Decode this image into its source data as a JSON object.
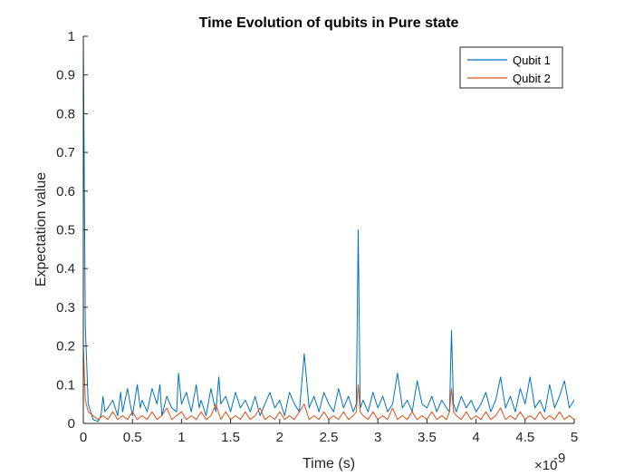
{
  "chart_data": {
    "type": "line",
    "title": "Time Evolution of qubits in Pure state",
    "xlabel": "Time (s)",
    "ylabel": "Expectation value",
    "x_exponent": {
      "base": "×10",
      "power": "-9"
    },
    "xlim": [
      0,
      5
    ],
    "ylim": [
      0,
      1
    ],
    "xticks": [
      0,
      0.5,
      1,
      1.5,
      2,
      2.5,
      3,
      3.5,
      4,
      4.5,
      5
    ],
    "xtick_labels": [
      "0",
      "0.5",
      "1",
      "1.5",
      "2",
      "2.5",
      "3",
      "3.5",
      "4",
      "4.5",
      "5"
    ],
    "yticks": [
      0,
      0.1,
      0.2,
      0.3,
      0.4,
      0.5,
      0.6,
      0.7,
      0.8,
      0.9,
      1
    ],
    "ytick_labels": [
      "0",
      "0.1",
      "0.2",
      "0.3",
      "0.4",
      "0.5",
      "0.6",
      "0.7",
      "0.8",
      "0.9",
      "1"
    ],
    "grid": false,
    "legend_position": "top-right",
    "series": [
      {
        "name": "Qubit 1",
        "color": "#0072BD",
        "x": [
          0,
          0.02,
          0.05,
          0.1,
          0.15,
          0.18,
          0.2,
          0.22,
          0.25,
          0.3,
          0.35,
          0.38,
          0.4,
          0.45,
          0.5,
          0.55,
          0.58,
          0.6,
          0.65,
          0.7,
          0.75,
          0.78,
          0.8,
          0.85,
          0.9,
          0.95,
          0.97,
          1.0,
          1.05,
          1.1,
          1.15,
          1.18,
          1.2,
          1.25,
          1.3,
          1.35,
          1.38,
          1.4,
          1.45,
          1.5,
          1.55,
          1.6,
          1.65,
          1.7,
          1.75,
          1.8,
          1.85,
          1.9,
          1.95,
          2.0,
          2.05,
          2.1,
          2.15,
          2.2,
          2.25,
          2.3,
          2.35,
          2.4,
          2.45,
          2.5,
          2.55,
          2.6,
          2.65,
          2.7,
          2.75,
          2.78,
          2.8,
          2.82,
          2.85,
          2.9,
          2.95,
          3.0,
          3.05,
          3.1,
          3.15,
          3.2,
          3.25,
          3.3,
          3.35,
          3.4,
          3.45,
          3.5,
          3.55,
          3.6,
          3.65,
          3.7,
          3.73,
          3.75,
          3.77,
          3.8,
          3.85,
          3.9,
          3.95,
          4.0,
          4.05,
          4.1,
          4.15,
          4.2,
          4.25,
          4.3,
          4.35,
          4.4,
          4.45,
          4.5,
          4.55,
          4.6,
          4.65,
          4.7,
          4.75,
          4.8,
          4.85,
          4.9,
          4.95,
          5.0
        ],
        "y": [
          1.0,
          0.25,
          0.05,
          0.01,
          0.005,
          0.02,
          0.07,
          0.03,
          0.04,
          0.06,
          0.02,
          0.08,
          0.03,
          0.09,
          0.02,
          0.1,
          0.04,
          0.06,
          0.03,
          0.09,
          0.05,
          0.1,
          0.02,
          0.07,
          0.04,
          0.03,
          0.13,
          0.05,
          0.08,
          0.03,
          0.1,
          0.04,
          0.06,
          0.02,
          0.09,
          0.03,
          0.12,
          0.05,
          0.07,
          0.03,
          0.08,
          0.04,
          0.06,
          0.03,
          0.07,
          0.02,
          0.05,
          0.08,
          0.04,
          0.06,
          0.02,
          0.08,
          0.05,
          0.03,
          0.18,
          0.04,
          0.07,
          0.03,
          0.08,
          0.05,
          0.03,
          0.09,
          0.04,
          0.07,
          0.03,
          0.05,
          0.5,
          0.04,
          0.06,
          0.03,
          0.08,
          0.04,
          0.07,
          0.03,
          0.05,
          0.13,
          0.04,
          0.06,
          0.03,
          0.11,
          0.05,
          0.04,
          0.07,
          0.03,
          0.06,
          0.04,
          0.03,
          0.24,
          0.05,
          0.03,
          0.07,
          0.04,
          0.06,
          0.03,
          0.05,
          0.08,
          0.03,
          0.06,
          0.12,
          0.04,
          0.07,
          0.03,
          0.09,
          0.05,
          0.12,
          0.04,
          0.06,
          0.03,
          0.1,
          0.04,
          0.07,
          0.11,
          0.04,
          0.06
        ]
      },
      {
        "name": "Qubit 2",
        "color": "#D95319",
        "x": [
          0,
          0.02,
          0.05,
          0.1,
          0.15,
          0.2,
          0.25,
          0.3,
          0.35,
          0.4,
          0.45,
          0.5,
          0.55,
          0.6,
          0.65,
          0.7,
          0.75,
          0.8,
          0.85,
          0.9,
          0.95,
          1.0,
          1.05,
          1.1,
          1.15,
          1.2,
          1.25,
          1.3,
          1.35,
          1.4,
          1.45,
          1.5,
          1.55,
          1.6,
          1.65,
          1.7,
          1.75,
          1.8,
          1.85,
          1.9,
          1.95,
          2.0,
          2.05,
          2.1,
          2.15,
          2.2,
          2.25,
          2.3,
          2.35,
          2.4,
          2.45,
          2.5,
          2.55,
          2.6,
          2.65,
          2.7,
          2.75,
          2.78,
          2.8,
          2.82,
          2.85,
          2.9,
          2.95,
          3.0,
          3.05,
          3.1,
          3.15,
          3.2,
          3.25,
          3.3,
          3.35,
          3.4,
          3.45,
          3.5,
          3.55,
          3.6,
          3.65,
          3.7,
          3.73,
          3.75,
          3.77,
          3.8,
          3.85,
          3.9,
          3.95,
          4.0,
          4.05,
          4.1,
          4.15,
          4.2,
          4.25,
          4.3,
          4.35,
          4.4,
          4.45,
          4.5,
          4.55,
          4.6,
          4.65,
          4.7,
          4.75,
          4.8,
          4.85,
          4.9,
          4.95,
          5.0
        ],
        "y": [
          0.2,
          0.06,
          0.03,
          0.02,
          0.01,
          0.02,
          0.01,
          0.03,
          0.01,
          0.02,
          0.01,
          0.03,
          0.01,
          0.02,
          0.01,
          0.03,
          0.01,
          0.02,
          0.04,
          0.01,
          0.02,
          0.03,
          0.01,
          0.02,
          0.01,
          0.03,
          0.01,
          0.02,
          0.05,
          0.01,
          0.03,
          0.01,
          0.02,
          0.01,
          0.03,
          0.01,
          0.02,
          0.04,
          0.01,
          0.02,
          0.01,
          0.03,
          0.01,
          0.02,
          0.01,
          0.03,
          0.05,
          0.01,
          0.02,
          0.01,
          0.03,
          0.01,
          0.02,
          0.01,
          0.03,
          0.01,
          0.02,
          0.03,
          0.1,
          0.03,
          0.02,
          0.01,
          0.03,
          0.01,
          0.02,
          0.01,
          0.04,
          0.01,
          0.02,
          0.01,
          0.03,
          0.01,
          0.02,
          0.01,
          0.03,
          0.01,
          0.02,
          0.01,
          0.03,
          0.09,
          0.03,
          0.02,
          0.01,
          0.03,
          0.01,
          0.02,
          0.01,
          0.03,
          0.01,
          0.02,
          0.04,
          0.01,
          0.02,
          0.01,
          0.03,
          0.01,
          0.02,
          0.01,
          0.03,
          0.01,
          0.02,
          0.01,
          0.03,
          0.01,
          0.02,
          0.01
        ]
      }
    ]
  }
}
